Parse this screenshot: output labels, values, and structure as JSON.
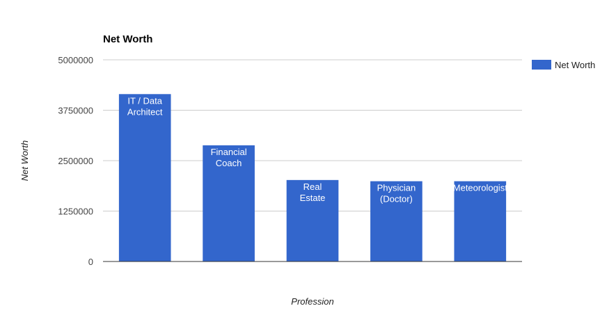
{
  "chart_data": {
    "type": "bar",
    "title": "Net Worth",
    "xlabel": "Profession",
    "ylabel": "Net Worth",
    "categories": [
      "IT / Data Architect",
      "Financial Coach",
      "Real Estate",
      "Physician (Doctor)",
      "Meteorologist"
    ],
    "bar_label_lines": [
      [
        "IT / Data",
        "Architect"
      ],
      [
        "Financial",
        "Coach"
      ],
      [
        "Real",
        "Estate"
      ],
      [
        "Physician",
        "(Doctor)"
      ],
      [
        "Meteorologist"
      ]
    ],
    "series": [
      {
        "name": "Net Worth",
        "values": [
          4150000,
          2880000,
          2020000,
          1990000,
          1990000
        ]
      }
    ],
    "ylim": [
      0,
      5000000
    ],
    "yticks": [
      "0",
      "1250000",
      "2500000",
      "3750000",
      "5000000"
    ],
    "grid": true,
    "legend": "right",
    "colors": {
      "bar": "#3366cc",
      "grid": "#cccccc",
      "axis": "#333333"
    }
  }
}
